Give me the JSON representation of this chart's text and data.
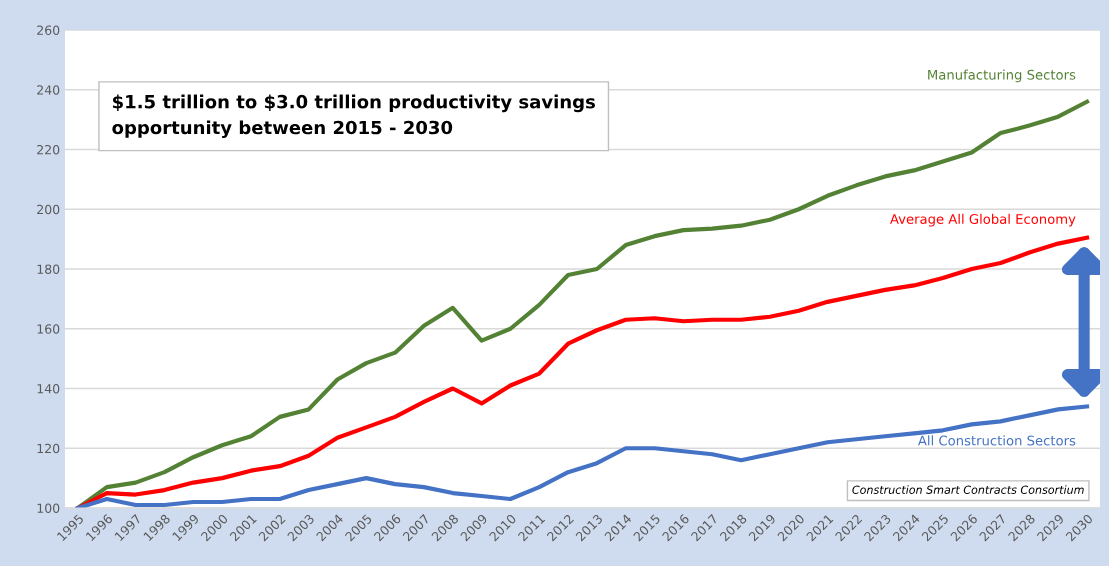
{
  "chart_data": {
    "type": "line",
    "categories": [
      "1995",
      "1996",
      "1997",
      "1998",
      "1999",
      "2000",
      "2001",
      "2002",
      "2003",
      "2004",
      "2005",
      "2006",
      "2007",
      "2008",
      "2009",
      "2010",
      "2011",
      "2012",
      "2013",
      "2014",
      "2015",
      "2016",
      "2017",
      "2018",
      "2019",
      "2020",
      "2021",
      "2022",
      "2023",
      "2024",
      "2025",
      "2026",
      "2027",
      "2028",
      "2029",
      "2030"
    ],
    "series": [
      {
        "name": "Manufacturing Sectors",
        "color": "#548235",
        "values": [
          100,
          107,
          108.5,
          112,
          117,
          121,
          124,
          130.5,
          133,
          143,
          148.5,
          152,
          161,
          167,
          156,
          160,
          168,
          178,
          180,
          188,
          191,
          193,
          193.5,
          194.5,
          196.5,
          200,
          204.5,
          208,
          211,
          213,
          216,
          219,
          225.5,
          228,
          231,
          236
        ]
      },
      {
        "name": "Average All Global Economy",
        "color": "#ff0000",
        "values": [
          100,
          105,
          104.5,
          106,
          108.5,
          110,
          112.5,
          114,
          117.5,
          123.5,
          127,
          130.5,
          135.5,
          140,
          135,
          141,
          145,
          155,
          159.5,
          163,
          163.5,
          162.5,
          163,
          163,
          164,
          166,
          169,
          171,
          173,
          174.5,
          177,
          180,
          182,
          185.5,
          188.5,
          190.5
        ]
      },
      {
        "name": "All Construction Sectors",
        "color": "#4472c4",
        "values": [
          100,
          103,
          101,
          101,
          102,
          102,
          103,
          103,
          106,
          108,
          110,
          108,
          107,
          105,
          104,
          103,
          107,
          112,
          115,
          120,
          120,
          119,
          118,
          116,
          118,
          120,
          122,
          123,
          124,
          125,
          126,
          128,
          129,
          131,
          133,
          134
        ]
      }
    ],
    "ylim": [
      100,
      260
    ],
    "yticks": [
      100,
      120,
      140,
      160,
      180,
      200,
      220,
      240,
      260
    ],
    "grid": "y",
    "legend": false,
    "annotations": [
      "$1.5 trillion to $3.0 trillion productivity savings\nopportunity between 2015 - 2030",
      "Construction Smart Contracts Consortium"
    ]
  }
}
